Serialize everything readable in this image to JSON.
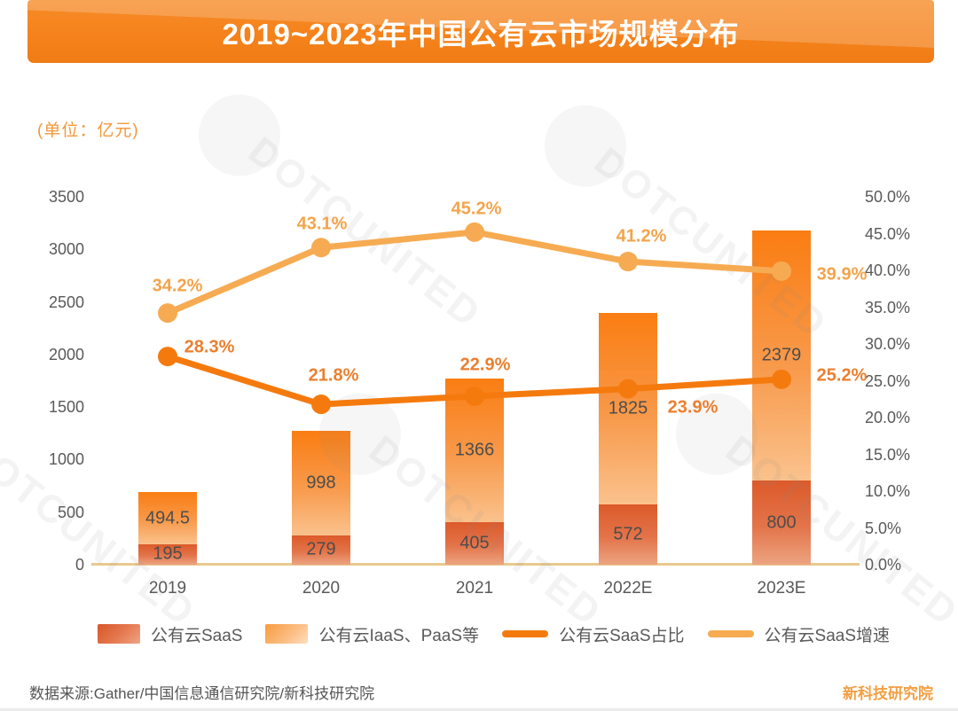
{
  "banner": {
    "title": "2019~2023年中国公有云市场规模分布",
    "bg_color": "#F5831D"
  },
  "unit_label": "(单位：亿元)",
  "watermark": {
    "text": "DOTCUNITED"
  },
  "axes": {
    "left_ticks": [
      "3500",
      "3000",
      "2500",
      "2000",
      "1500",
      "1000",
      "500",
      "0"
    ],
    "right_ticks": [
      "50.0%",
      "45.0%",
      "40.0%",
      "35.0%",
      "30.0%",
      "25.0%",
      "20.0%",
      "15.0%",
      "10.0%",
      "5.0%",
      "0.0%"
    ],
    "x_labels": [
      "2019",
      "2020",
      "2021",
      "2022E",
      "2023E"
    ]
  },
  "legend": {
    "items": [
      {
        "label": "公有云SaaS",
        "swatch": "bar-saas"
      },
      {
        "label": "公有云IaaS、PaaS等",
        "swatch": "bar-iaas"
      },
      {
        "label": "公有云SaaS占比",
        "swatch": "line-share"
      },
      {
        "label": "公有云SaaS增速",
        "swatch": "line-growth"
      }
    ]
  },
  "footer": {
    "source": "数据来源:Gather/中国信息通信研究院/新科技研究院",
    "brand": "新科技研究院"
  },
  "colors": {
    "banner": "#F5831D",
    "saas_bar_top": "#DC5A2A",
    "saas_bar_bottom": "#ECA481",
    "iaas_bar_top": "#FA7D12",
    "iaas_bar_bottom": "#FAC28D",
    "share_line": "#F57A0E",
    "growth_line": "#F6AB52",
    "share_label": "#EB7F2F",
    "growth_label": "#F3A44C",
    "axis_text": "#595959",
    "bar_label_text": "#4D4D4D",
    "zero_line": "#E8C98E"
  },
  "chart_data": {
    "type": "combo-stacked-bar-line",
    "title": "2019~2023年中国公有云市场规模分布",
    "categories": [
      "2019",
      "2020",
      "2021",
      "2022E",
      "2023E"
    ],
    "left_axis": {
      "min": 0,
      "max": 3500,
      "step": 500,
      "unit": "亿元"
    },
    "right_axis": {
      "min": 0,
      "max": 50,
      "step": 5,
      "unit": "%"
    },
    "grid": false,
    "legend_position": "bottom",
    "series": [
      {
        "name": "公有云SaaS",
        "type": "bar",
        "stack": "market",
        "axis": "left",
        "values": [
          195,
          279,
          405,
          572,
          800
        ],
        "labels": [
          "195",
          "279",
          "405",
          "572",
          "800"
        ]
      },
      {
        "name": "公有云IaaS、PaaS等",
        "type": "bar",
        "stack": "market",
        "axis": "left",
        "values": [
          494.5,
          998,
          1366,
          1825,
          2379
        ],
        "labels": [
          "494.5",
          "998",
          "1366",
          "1825",
          "2379"
        ]
      },
      {
        "name": "公有云SaaS占比",
        "type": "line",
        "axis": "right",
        "values": [
          28.3,
          21.8,
          22.9,
          23.9,
          25.2
        ],
        "labels": [
          "28.3%",
          "21.8%",
          "22.9%",
          "23.9%",
          "25.2%"
        ]
      },
      {
        "name": "公有云SaaS增速",
        "type": "line",
        "axis": "right",
        "values": [
          34.2,
          43.1,
          45.2,
          41.2,
          39.9
        ],
        "labels": [
          "34.2%",
          "43.1%",
          "45.2%",
          "41.2%",
          "39.9%"
        ]
      }
    ]
  }
}
